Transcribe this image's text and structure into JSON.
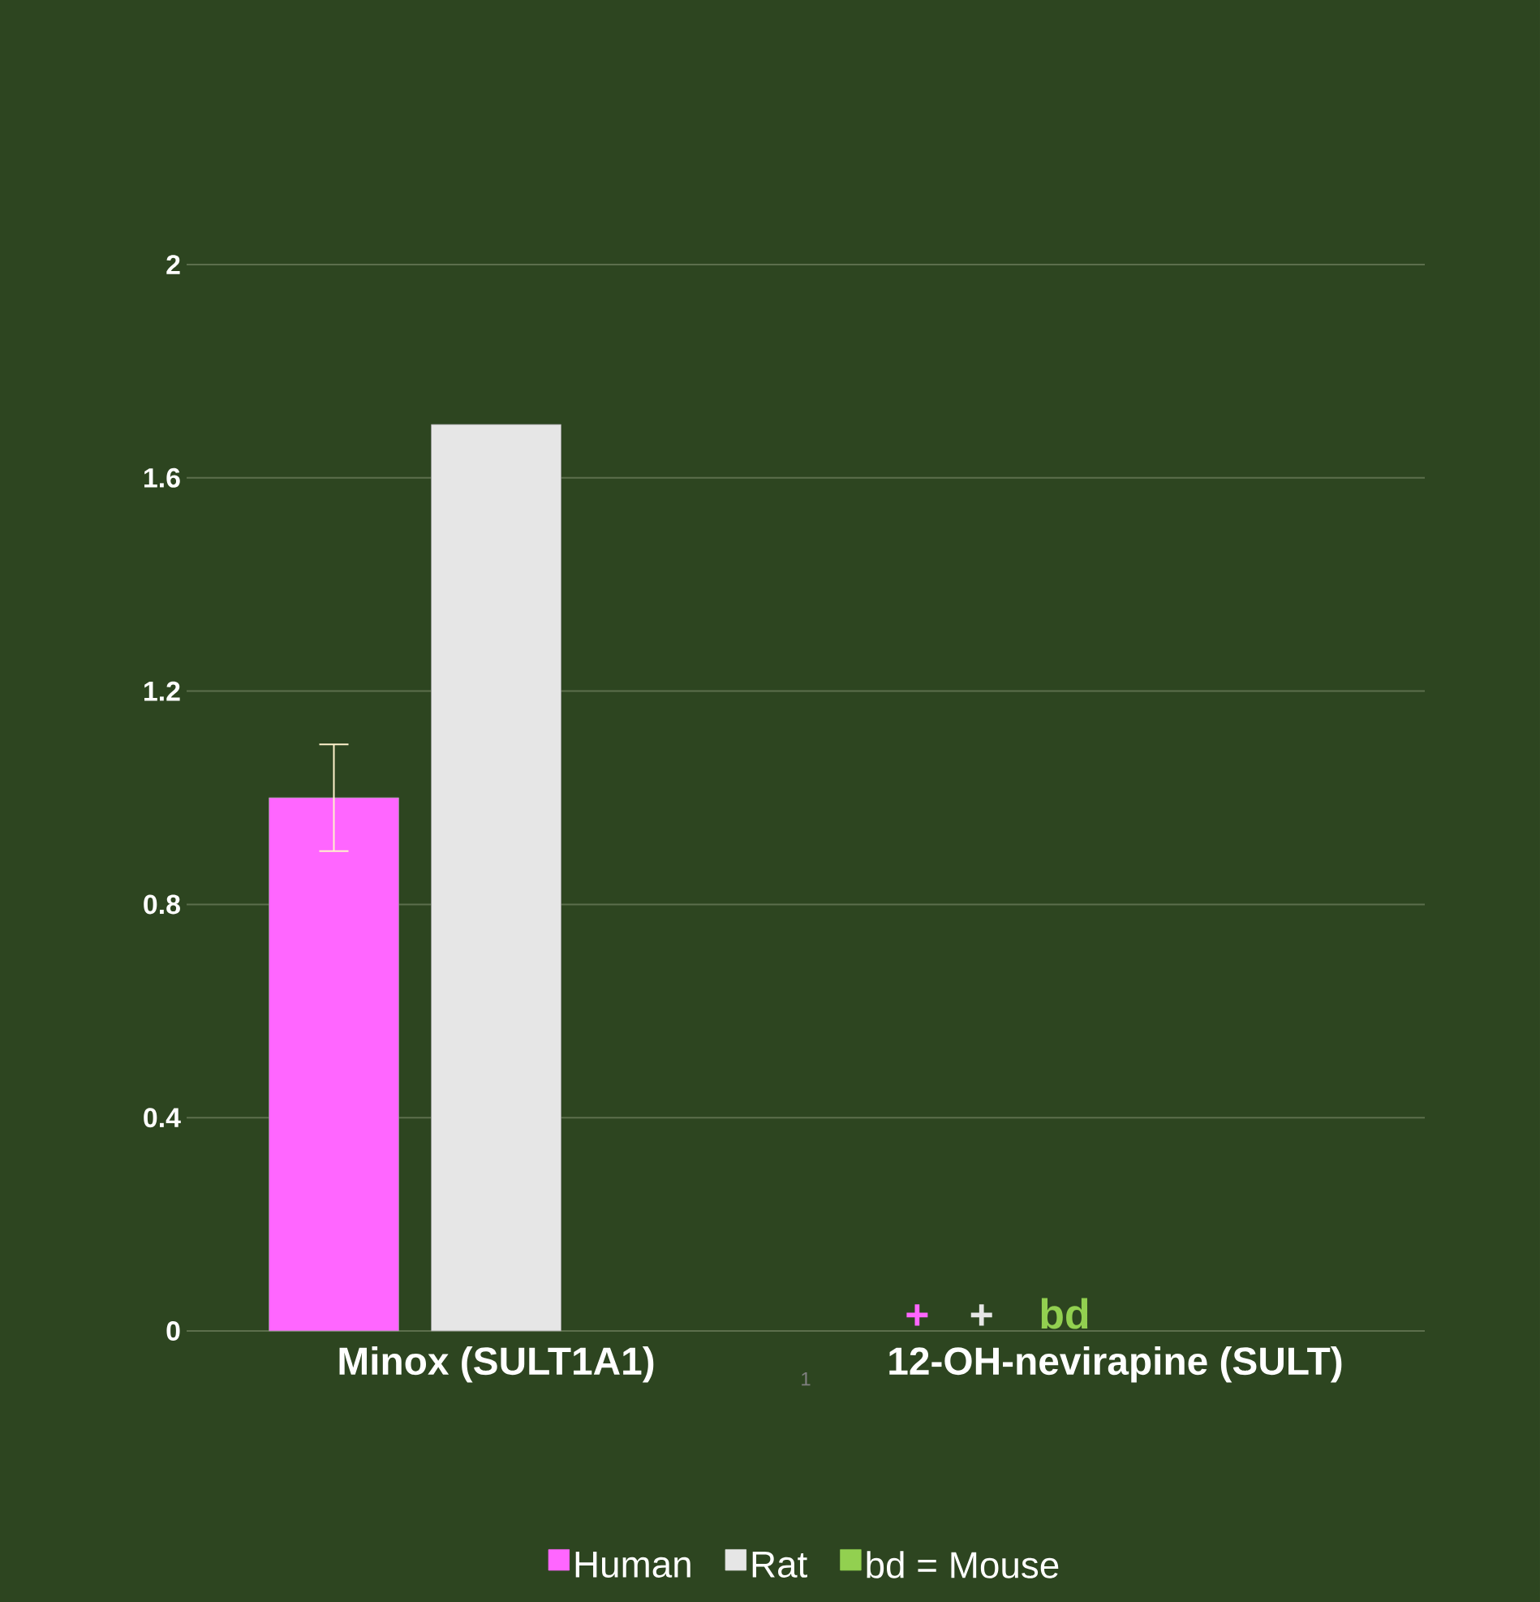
{
  "chart_data": {
    "type": "bar",
    "categories": [
      "Minox (SULT1A1)",
      "12-OH-nevirapine (SULT)"
    ],
    "series": [
      {
        "name": "Human",
        "color": "#ff66ff",
        "values": [
          1.0,
          null
        ],
        "errors": [
          0.1,
          null
        ]
      },
      {
        "name": "Rat",
        "color": "#e6e6e6",
        "values": [
          1.7,
          null
        ]
      },
      {
        "name": "bd = Mouse",
        "color": "#92d050",
        "values": [
          null,
          null
        ]
      }
    ],
    "ylim": [
      0,
      2
    ],
    "yticks": [
      0,
      0.4,
      0.8,
      1.2,
      1.6,
      2
    ],
    "grid": "y",
    "legend": "bottom",
    "annotations": [
      "+",
      "+",
      "bd",
      "1"
    ]
  }
}
